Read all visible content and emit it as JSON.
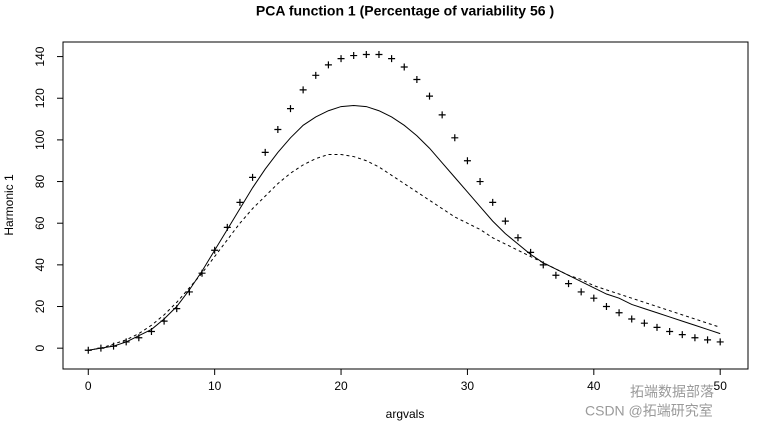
{
  "chart_data": {
    "type": "line",
    "title": "PCA function 1 (Percentage of variability 56 )",
    "xlabel": "argvals",
    "ylabel": "Harmonic 1",
    "x": [
      0,
      1,
      2,
      3,
      4,
      5,
      6,
      7,
      8,
      9,
      10,
      11,
      12,
      13,
      14,
      15,
      16,
      17,
      18,
      19,
      20,
      21,
      22,
      23,
      24,
      25,
      26,
      27,
      28,
      29,
      30,
      31,
      32,
      33,
      34,
      35,
      36,
      37,
      38,
      39,
      40,
      41,
      42,
      43,
      44,
      45,
      46,
      47,
      48,
      49,
      50
    ],
    "series": [
      {
        "style": "solid",
        "color": "#000000",
        "values": [
          -1,
          0,
          1,
          3,
          6,
          9,
          14,
          20,
          28,
          37,
          47,
          57,
          67,
          77,
          86,
          94,
          101,
          107,
          111,
          114,
          116,
          116.5,
          116,
          114,
          111,
          107,
          102,
          96,
          89,
          82,
          75,
          68,
          61,
          55,
          50,
          45,
          41,
          38,
          35,
          32,
          29,
          26,
          24,
          21,
          19,
          17,
          15,
          13,
          11,
          9,
          7
        ]
      },
      {
        "style": "plus",
        "color": "#000000",
        "values": [
          -1,
          0,
          1,
          3,
          5,
          8,
          13,
          19,
          27,
          36,
          47,
          58,
          70,
          82,
          94,
          105,
          115,
          124,
          131,
          136,
          139,
          140.5,
          141,
          141,
          139,
          135,
          129,
          121,
          112,
          101,
          90,
          80,
          70,
          61,
          53,
          46,
          40,
          35,
          31,
          27,
          24,
          20,
          17,
          14,
          12,
          10,
          8,
          6.5,
          5,
          4,
          3
        ]
      },
      {
        "style": "dashed",
        "color": "#000000",
        "values": [
          -1,
          0,
          2,
          4,
          7,
          11,
          16,
          22,
          29,
          36,
          44,
          52,
          60,
          67,
          73,
          79,
          84,
          88,
          91,
          93,
          93,
          92,
          90,
          87,
          83,
          79,
          75,
          71,
          67,
          63,
          60,
          57,
          53,
          50,
          47,
          44,
          41,
          38,
          35,
          33,
          30,
          28,
          26,
          24,
          22,
          20,
          18,
          16,
          14,
          12,
          10
        ]
      }
    ],
    "xlim": [
      -2,
      52.2
    ],
    "ylim": [
      -10,
      147
    ],
    "xticks": [
      0,
      10,
      20,
      30,
      40,
      50
    ],
    "yticks": [
      0,
      20,
      40,
      60,
      80,
      100,
      120,
      140
    ],
    "grid": false
  },
  "watermarks": [
    "拓端数据部落",
    "CSDN @拓端研究室"
  ]
}
